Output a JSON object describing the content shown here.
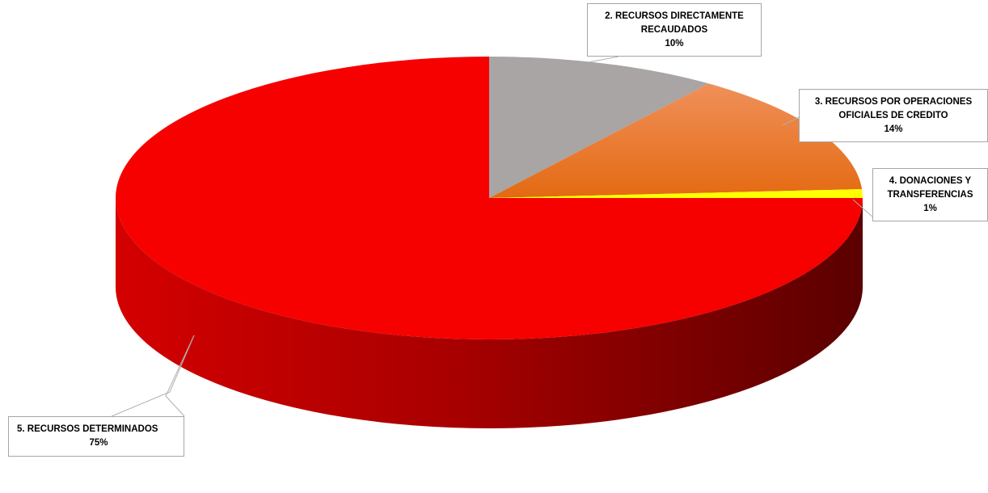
{
  "chart_data": {
    "type": "pie",
    "title": "",
    "style": "3d",
    "slices": [
      {
        "label_lines": [
          "2. RECURSOS DIRECTAMENTE",
          "RECAUDADOS"
        ],
        "percent_label": "10%",
        "value": 10,
        "color": "#a8a5a4"
      },
      {
        "label_lines": [
          "3. RECURSOS POR OPERACIONES",
          "OFICIALES DE CREDITO"
        ],
        "percent_label": "14%",
        "value": 14,
        "color": "#e8711f"
      },
      {
        "label_lines": [
          "4. DONACIONES Y",
          "TRANSFERENCIAS"
        ],
        "percent_label": "1%",
        "value": 1,
        "color": "#ffff00"
      },
      {
        "label_lines": [
          "5. RECURSOS DETERMINADOS"
        ],
        "percent_label": "75%",
        "value": 75,
        "color": "#f60000"
      }
    ]
  }
}
